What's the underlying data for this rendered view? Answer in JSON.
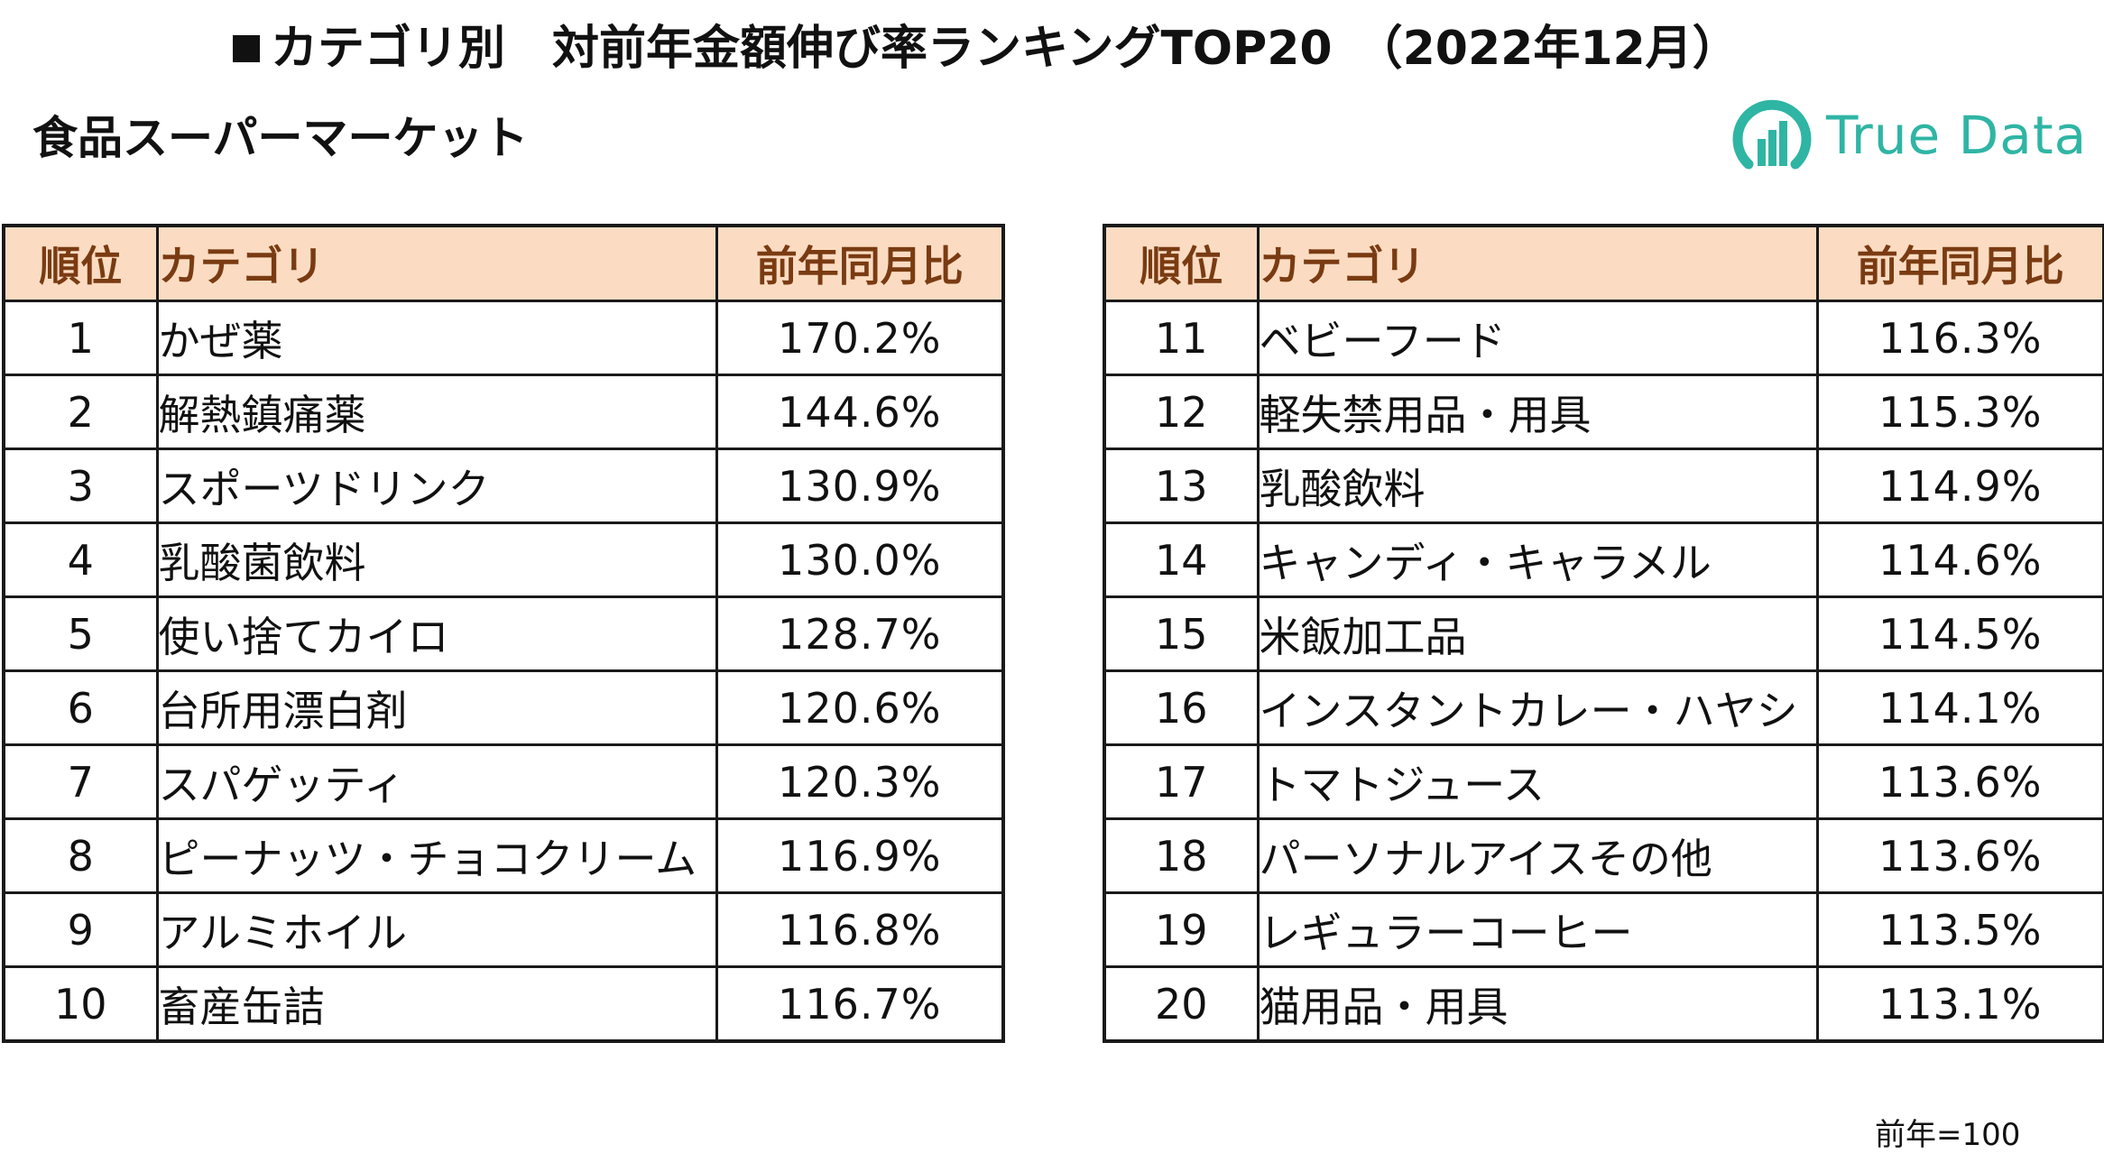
{
  "title": "カテゴリ別　対前年金額伸び率ランキングTOP20　（2022年12月）",
  "subtitle": "食品スーパーマーケット",
  "logo": {
    "text": "True Data",
    "icon": "bar-chart-circle-icon",
    "color": "#2fb5a4"
  },
  "headers": {
    "rank": "順位",
    "category": "カテゴリ",
    "ratio": "前年同月比"
  },
  "header_bg_color": "#fbdcc2",
  "left_rows": [
    {
      "rank": "1",
      "category": "かぜ薬",
      "ratio": "170.2%"
    },
    {
      "rank": "2",
      "category": "解熱鎮痛薬",
      "ratio": "144.6%"
    },
    {
      "rank": "3",
      "category": "スポーツドリンク",
      "ratio": "130.9%"
    },
    {
      "rank": "4",
      "category": "乳酸菌飲料",
      "ratio": "130.0%"
    },
    {
      "rank": "5",
      "category": "使い捨てカイロ",
      "ratio": "128.7%"
    },
    {
      "rank": "6",
      "category": "台所用漂白剤",
      "ratio": "120.6%"
    },
    {
      "rank": "7",
      "category": "スパゲッティ",
      "ratio": "120.3%"
    },
    {
      "rank": "8",
      "category": "ピーナッツ・チョコクリーム",
      "ratio": "116.9%"
    },
    {
      "rank": "9",
      "category": "アルミホイル",
      "ratio": "116.8%"
    },
    {
      "rank": "10",
      "category": "畜産缶詰",
      "ratio": "116.7%"
    }
  ],
  "right_rows": [
    {
      "rank": "11",
      "category": "ベビーフード",
      "ratio": "116.3%"
    },
    {
      "rank": "12",
      "category": "軽失禁用品・用具",
      "ratio": "115.3%"
    },
    {
      "rank": "13",
      "category": "乳酸飲料",
      "ratio": "114.9%"
    },
    {
      "rank": "14",
      "category": "キャンディ・キャラメル",
      "ratio": "114.6%"
    },
    {
      "rank": "15",
      "category": "米飯加工品",
      "ratio": "114.5%"
    },
    {
      "rank": "16",
      "category": "インスタントカレー・ハヤシ",
      "ratio": "114.1%"
    },
    {
      "rank": "17",
      "category": "トマトジュース",
      "ratio": "113.6%"
    },
    {
      "rank": "18",
      "category": "パーソナルアイスその他",
      "ratio": "113.6%"
    },
    {
      "rank": "19",
      "category": "レギュラーコーヒー",
      "ratio": "113.5%"
    },
    {
      "rank": "20",
      "category": "猫用品・用具",
      "ratio": "113.1%"
    }
  ],
  "footnote": "前年=100"
}
